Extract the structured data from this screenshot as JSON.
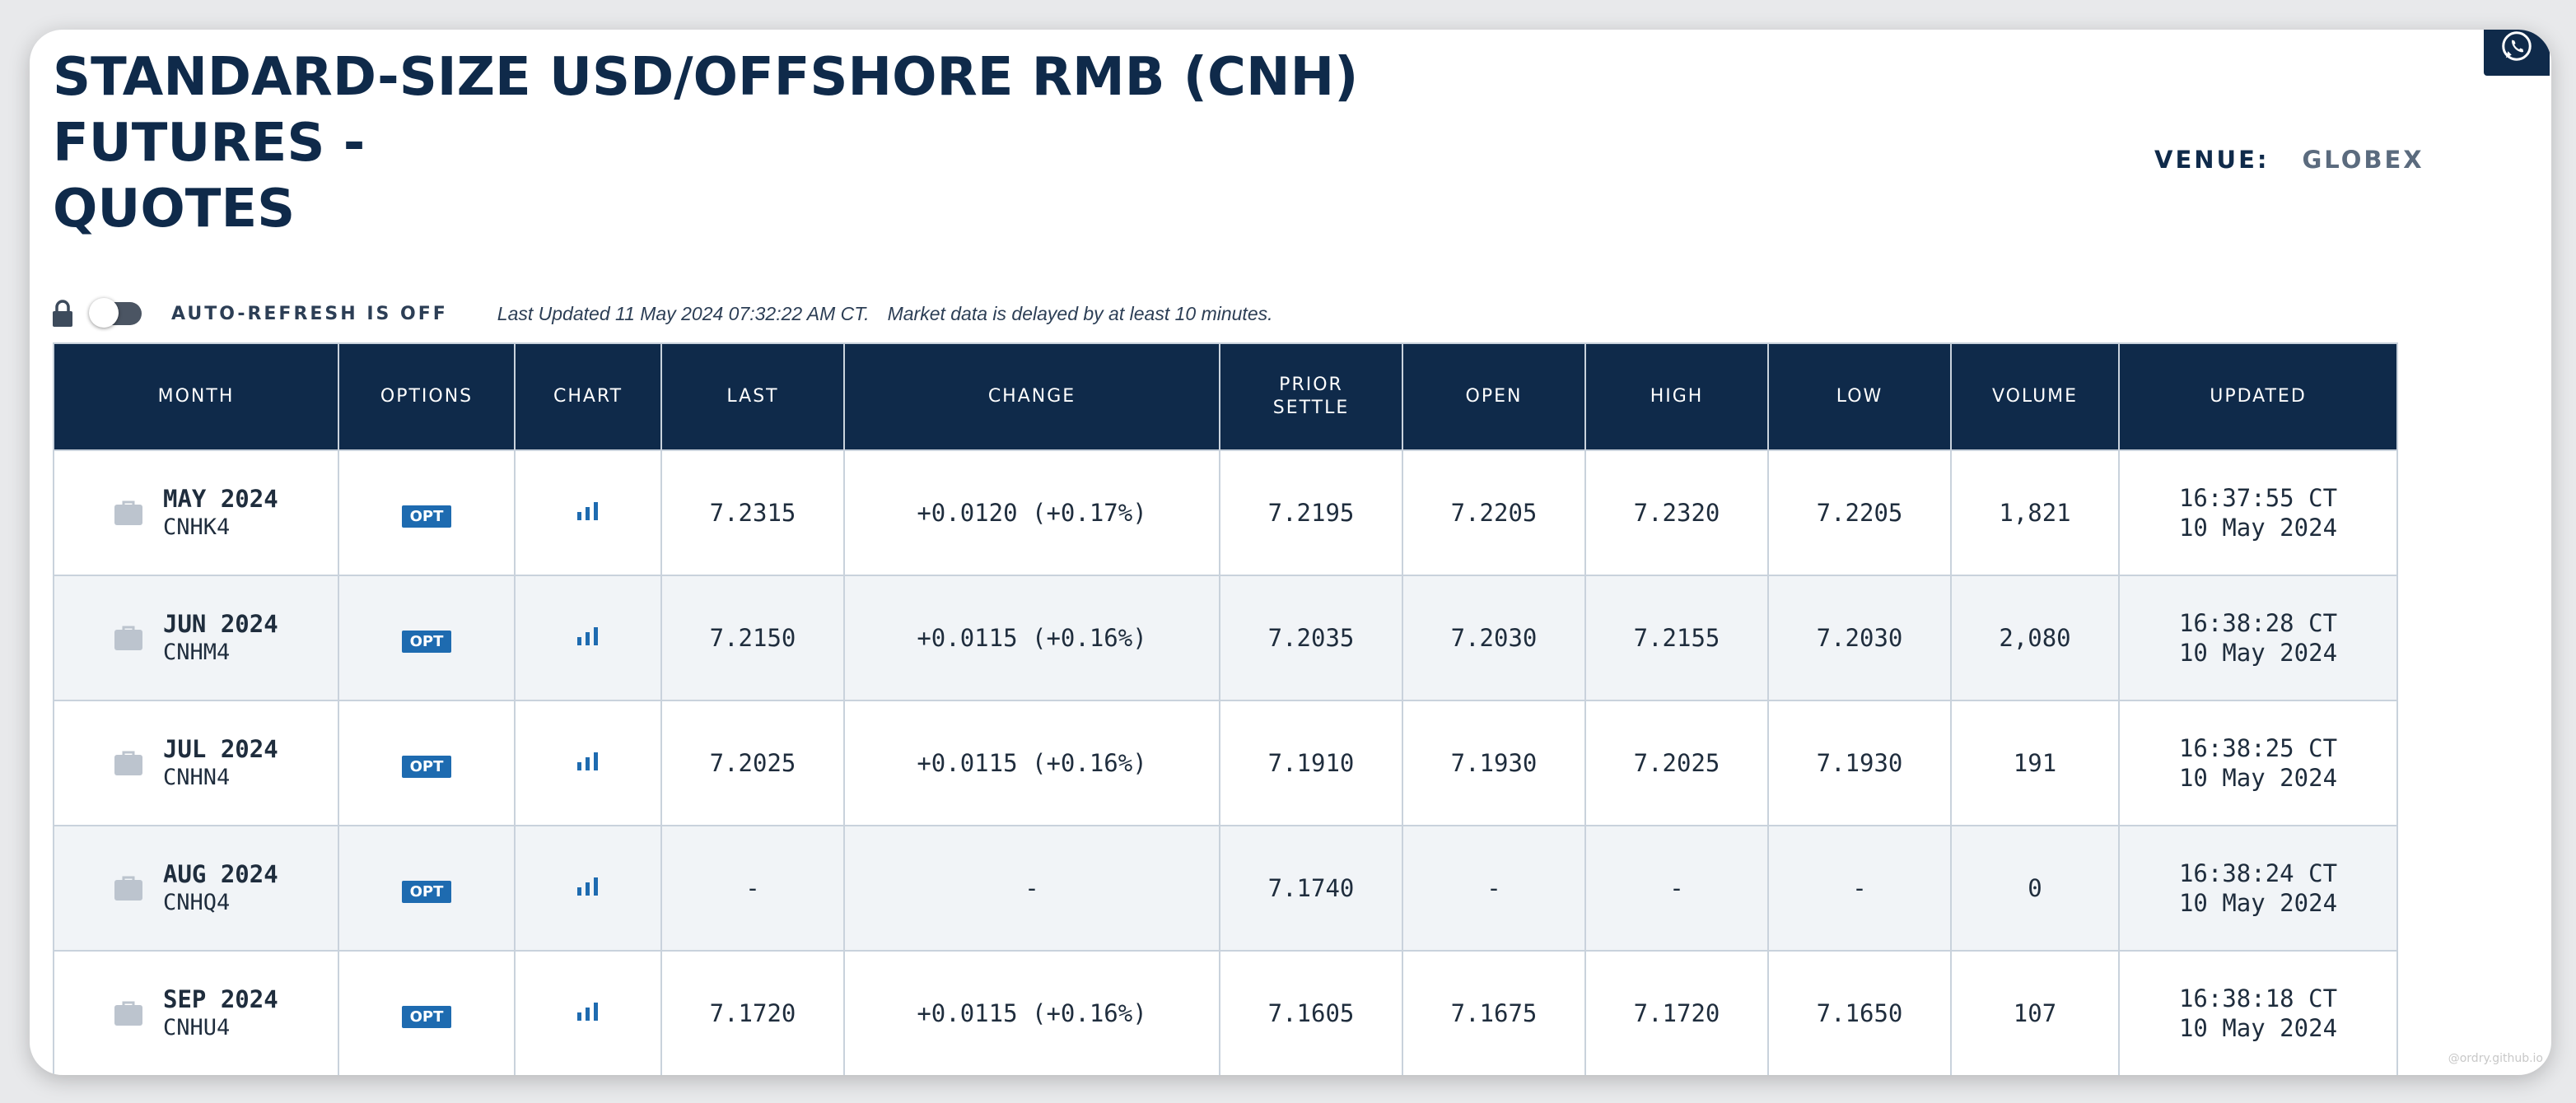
{
  "page": {
    "title_line1": "STANDARD-SIZE USD/OFFSHORE RMB (CNH) FUTURES -",
    "title_line2": "QUOTES",
    "venue_label": "VENUE:",
    "venue_value": "GLOBEX",
    "auto_refresh": "AUTO-REFRESH IS OFF",
    "last_updated": "Last Updated 11 May 2024 07:32:22 AM CT.",
    "delay_note": "Market data is delayed by at least 10 minutes.",
    "attribution": "@ordry.github.io"
  },
  "icons": {
    "whatsapp": "whatsapp-icon",
    "lock": "lock-icon",
    "toggle": "toggle-switch",
    "briefcase": "briefcase-icon",
    "chart": "bar-chart-icon"
  },
  "colors": {
    "navy": "#0f2a4a",
    "positive": "#168a16",
    "opt_badge": "#1e6bb0",
    "row_alt": "#f1f4f7"
  },
  "table": {
    "headers": [
      "MONTH",
      "OPTIONS",
      "CHART",
      "LAST",
      "CHANGE",
      "PRIOR SETTLE",
      "OPEN",
      "HIGH",
      "LOW",
      "VOLUME",
      "UPDATED"
    ],
    "rows": [
      {
        "month": "MAY 2024",
        "code": "CNHK4",
        "opt": "OPT",
        "last": "7.2315",
        "change": "+0.0120 (+0.17%)",
        "prior": "7.2195",
        "open": "7.2205",
        "high": "7.2320",
        "low": "7.2205",
        "volume": "1,821",
        "time": "16:37:55 CT",
        "date": "10 May 2024"
      },
      {
        "month": "JUN 2024",
        "code": "CNHM4",
        "opt": "OPT",
        "last": "7.2150",
        "change": "+0.0115 (+0.16%)",
        "prior": "7.2035",
        "open": "7.2030",
        "high": "7.2155",
        "low": "7.2030",
        "volume": "2,080",
        "time": "16:38:28 CT",
        "date": "10 May 2024"
      },
      {
        "month": "JUL 2024",
        "code": "CNHN4",
        "opt": "OPT",
        "last": "7.2025",
        "change": "+0.0115 (+0.16%)",
        "prior": "7.1910",
        "open": "7.1930",
        "high": "7.2025",
        "low": "7.1930",
        "volume": "191",
        "time": "16:38:25 CT",
        "date": "10 May 2024"
      },
      {
        "month": "AUG 2024",
        "code": "CNHQ4",
        "opt": "OPT",
        "last": "-",
        "change": "-",
        "prior": "7.1740",
        "open": "-",
        "high": "-",
        "low": "-",
        "volume": "0",
        "time": "16:38:24 CT",
        "date": "10 May 2024"
      },
      {
        "month": "SEP 2024",
        "code": "CNHU4",
        "opt": "OPT",
        "last": "7.1720",
        "change": "+0.0115 (+0.16%)",
        "prior": "7.1605",
        "open": "7.1675",
        "high": "7.1720",
        "low": "7.1650",
        "volume": "107",
        "time": "16:38:18 CT",
        "date": "10 May 2024"
      }
    ]
  }
}
